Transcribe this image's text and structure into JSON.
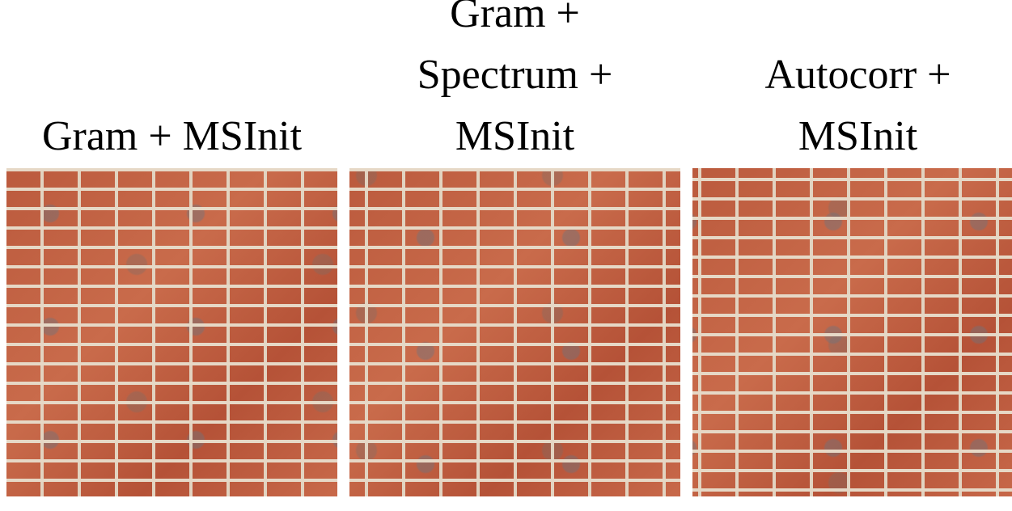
{
  "panels": [
    {
      "caption_lines": [
        "Gram + MSInit"
      ]
    },
    {
      "caption_lines": [
        "Gram +",
        "Spectrum +",
        "MSInit"
      ]
    },
    {
      "caption_lines": [
        "Autocorr +",
        "MSInit"
      ]
    }
  ]
}
